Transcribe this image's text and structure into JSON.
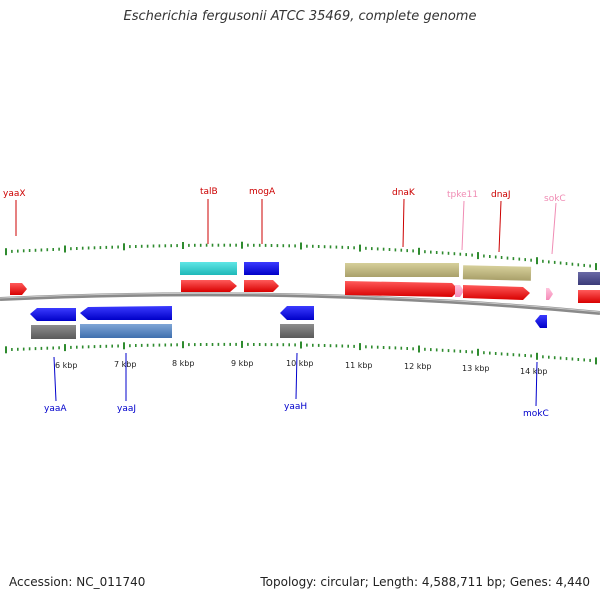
{
  "title": "Escherichia fergusonii ATCC 35469, complete genome",
  "footer": {
    "accession": "Accession: NC_011740",
    "summary": "Topology: circular; Length: 4,588,711 bp; Genes: 4,440"
  },
  "colors": {
    "backbone": "#8a8a8a",
    "tick": "#2e8b2e",
    "label_top_red": "#cc0000",
    "label_top_pink": "#f08cb4",
    "label_bottom": "#0000cc"
  },
  "scale_labels": [
    "6 kbp",
    "7 kbp",
    "8 kbp",
    "9 kbp",
    "10 kbp",
    "11 kbp",
    "12 kbp",
    "13 kbp",
    "14 kbp"
  ],
  "top_labels": [
    {
      "name": "yaaX",
      "tone": "red"
    },
    {
      "name": "talB",
      "tone": "red"
    },
    {
      "name": "mogA",
      "tone": "red"
    },
    {
      "name": "dnaK",
      "tone": "red"
    },
    {
      "name": "tpke11",
      "tone": "pink"
    },
    {
      "name": "dnaJ",
      "tone": "red"
    },
    {
      "name": "sokC",
      "tone": "pink"
    }
  ],
  "bottom_labels": [
    {
      "name": "yaaA"
    },
    {
      "name": "yaaJ"
    },
    {
      "name": "yaaH"
    },
    {
      "name": "mokC"
    }
  ],
  "features": [
    {
      "id": "yaaX-gene",
      "strand": "+",
      "track": "gene",
      "color": "red"
    },
    {
      "id": "talB-cds",
      "strand": "+",
      "track": "cds",
      "color": "cyan"
    },
    {
      "id": "talB-gene",
      "strand": "+",
      "track": "gene",
      "color": "red"
    },
    {
      "id": "mogA-cds",
      "strand": "+",
      "track": "cds",
      "color": "blue"
    },
    {
      "id": "mogA-gene",
      "strand": "+",
      "track": "gene",
      "color": "red"
    },
    {
      "id": "dnaK-cds",
      "strand": "+",
      "track": "cds",
      "color": "olive"
    },
    {
      "id": "dnaK-gene",
      "strand": "+",
      "track": "gene",
      "color": "red"
    },
    {
      "id": "tpke11-gene",
      "strand": "+",
      "track": "gene",
      "color": "pink"
    },
    {
      "id": "dnaJ-cds",
      "strand": "+",
      "track": "cds",
      "color": "olive"
    },
    {
      "id": "dnaJ-gene",
      "strand": "+",
      "track": "gene",
      "color": "red"
    },
    {
      "id": "sokC-gene",
      "strand": "+",
      "track": "gene",
      "color": "pink"
    },
    {
      "id": "next-cds",
      "strand": "+",
      "track": "cds",
      "color": "slate"
    },
    {
      "id": "next-gene",
      "strand": "+",
      "track": "gene",
      "color": "red"
    },
    {
      "id": "yaaA-gene",
      "strand": "-",
      "track": "gene",
      "color": "blue"
    },
    {
      "id": "yaaA-cds",
      "strand": "-",
      "track": "cds",
      "color": "gray"
    },
    {
      "id": "yaaJ-gene",
      "strand": "-",
      "track": "gene",
      "color": "blue"
    },
    {
      "id": "yaaJ-cds",
      "strand": "-",
      "track": "cds",
      "color": "steelblue"
    },
    {
      "id": "yaaH-gene",
      "strand": "-",
      "track": "gene",
      "color": "blue"
    },
    {
      "id": "yaaH-cds",
      "strand": "-",
      "track": "cds",
      "color": "gray"
    },
    {
      "id": "mokC-gene",
      "strand": "-",
      "track": "gene",
      "color": "blue"
    }
  ]
}
